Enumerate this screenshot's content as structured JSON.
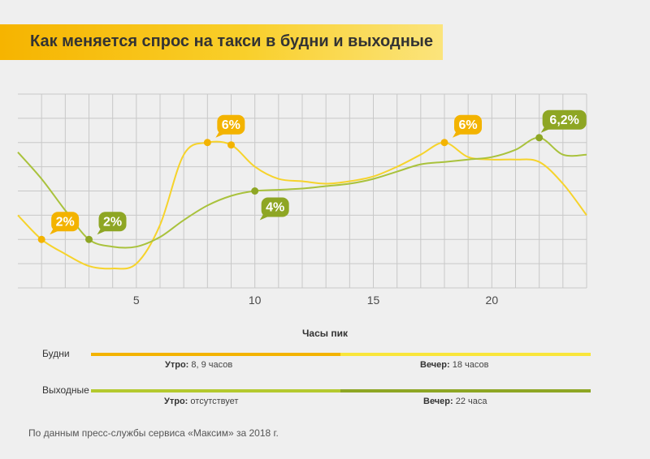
{
  "title": "Как меняется спрос на такси в будни и выходные",
  "colors": {
    "weekday": "#f6d32b",
    "weekday_dark": "#f3b300",
    "weekend": "#a9c23c",
    "weekend_dark": "#8ea624",
    "grid": "#c8c8c8",
    "title_bg": "#f6b400"
  },
  "chart_data": {
    "type": "line",
    "x_ticks": [
      5,
      10,
      15,
      20
    ],
    "xlim": [
      0,
      24
    ],
    "series": [
      {
        "key": "weekday",
        "x": [
          0,
          1,
          2,
          3,
          4,
          5,
          6,
          7,
          8,
          9,
          10,
          11,
          12,
          13,
          14,
          15,
          16,
          17,
          18,
          19,
          20,
          21,
          22,
          23,
          24
        ],
        "y": [
          3.0,
          2.0,
          1.4,
          0.9,
          0.8,
          1.0,
          2.6,
          5.5,
          6.0,
          5.9,
          5.0,
          4.5,
          4.4,
          4.3,
          4.4,
          4.6,
          5.0,
          5.5,
          6.0,
          5.4,
          5.3,
          5.3,
          5.2,
          4.3,
          3.0
        ]
      },
      {
        "key": "weekend",
        "x": [
          0,
          1,
          2,
          3,
          4,
          5,
          6,
          7,
          8,
          9,
          10,
          11,
          12,
          13,
          14,
          15,
          16,
          17,
          18,
          19,
          20,
          21,
          22,
          23,
          24
        ],
        "y": [
          5.6,
          4.5,
          3.2,
          2.0,
          1.7,
          1.7,
          2.1,
          2.8,
          3.4,
          3.8,
          4.0,
          4.05,
          4.1,
          4.2,
          4.3,
          4.5,
          4.8,
          5.1,
          5.2,
          5.3,
          5.4,
          5.7,
          6.2,
          5.5,
          5.5
        ]
      }
    ],
    "annotations": [
      {
        "series": "weekday",
        "x": 1,
        "y": 2.0,
        "label": "2%"
      },
      {
        "series": "weekday",
        "x": 8,
        "y": 6.0,
        "label": "6%"
      },
      {
        "series": "weekday",
        "x": 9,
        "y": 5.9,
        "label": ""
      },
      {
        "series": "weekday",
        "x": 18,
        "y": 6.0,
        "label": "6%"
      },
      {
        "series": "weekend",
        "x": 3,
        "y": 2.0,
        "label": "2%"
      },
      {
        "series": "weekend",
        "x": 10,
        "y": 4.0,
        "label": "4%"
      },
      {
        "series": "weekend",
        "x": 22,
        "y": 6.2,
        "label": "6,2%"
      }
    ],
    "ylim": [
      0,
      8
    ],
    "grid": true
  },
  "peak_hours": {
    "title": "Часы пик",
    "weekdays": {
      "label": "Будни",
      "morning_key": "Утро:",
      "morning_value": " 8, 9 часов",
      "evening_key": "Вечер:",
      "evening_value": " 18 часов"
    },
    "weekends": {
      "label": "Выходные",
      "morning_key": "Утро:",
      "morning_value": " отсутствует",
      "evening_key": "Вечер:",
      "evening_value": " 22 часа"
    }
  },
  "source": "По данным пресс-службы сервиса «Максим» за 2018 г."
}
